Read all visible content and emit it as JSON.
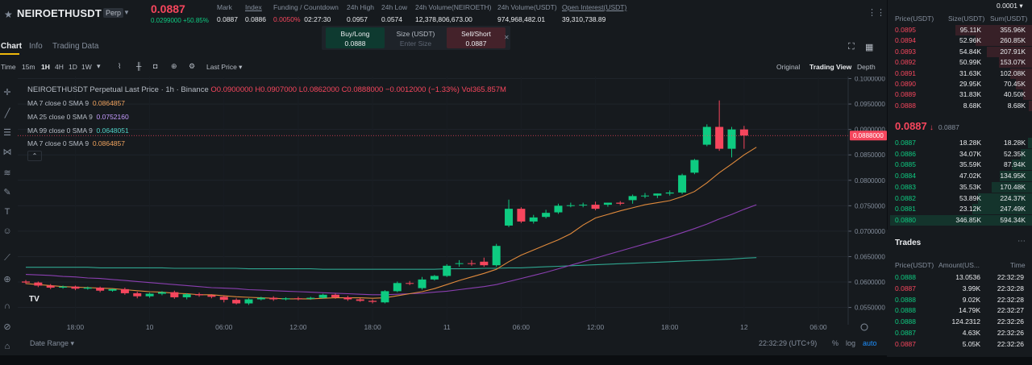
{
  "header": {
    "symbol": "NEIROETHUSDT",
    "perp_badge": "Perp",
    "last_price": "0.0887",
    "change": "0.0299000 +50.85%",
    "stats": [
      {
        "label": "Mark",
        "value": "0.0887"
      },
      {
        "label": "Index",
        "value": "0.0886"
      },
      {
        "label": "Funding / Countdown",
        "value_rate": "0.0050%",
        "value_countdown": "02:27:30"
      },
      {
        "label": "24h High",
        "value": "0.0957"
      },
      {
        "label": "24h Low",
        "value": "0.0574"
      },
      {
        "label": "24h Volume(NEIROETH)",
        "value": "12,378,806,673.00"
      },
      {
        "label": "24h Volume(USDT)",
        "value": "974,968,482.01"
      },
      {
        "label": "Open Interest(USDT)",
        "value": "39,310,738.89"
      }
    ]
  },
  "tabs": [
    "Chart",
    "Info",
    "Trading Data"
  ],
  "trade_widget": {
    "buy_label": "Buy/Long",
    "buy_price": "0.0888",
    "size_label": "Size (USDT)",
    "size_placeholder": "Enter Size",
    "sell_label": "Sell/Short",
    "sell_price": "0.0887"
  },
  "toolbar": {
    "time_label": "Time",
    "intervals": [
      "15m",
      "1H",
      "4H",
      "1D",
      "1W"
    ],
    "active_interval": "1H",
    "price_type": "Last Price",
    "views": [
      "Original",
      "Trading View",
      "Depth"
    ],
    "active_view": "Trading View"
  },
  "legend": {
    "title": "NEIROETHUSDT Perpetual Last Price · 1h · Binance",
    "ohlc": "O0.0900000 H0.0907000 L0.0862000 C0.0888000 −0.0012000 (−1.33%) Vol365.857M",
    "ma_rows": [
      {
        "label": "MA 7 close 0 SMA 9",
        "value": "0.0864857",
        "color": "#f0a35e"
      },
      {
        "label": "MA 25 close 0 SMA 9",
        "value": "0.0752160",
        "color": "#b388ff"
      },
      {
        "label": "MA 99 close 0 SMA 9",
        "value": "0.0648051",
        "color": "#4fd1c5"
      },
      {
        "label": "MA 7 close 0 SMA 9",
        "value": "0.0864857",
        "color": "#f0a35e"
      }
    ]
  },
  "chart_data": {
    "type": "candlestick",
    "title": "NEIROETHUSDT Perpetual Last Price · 1h · Binance",
    "y_ticks": [
      "0.1000000",
      "0.0950000",
      "0.0900000",
      "0.0850000",
      "0.0800000",
      "0.0750000",
      "0.0700000",
      "0.0650000",
      "0.0600000",
      "0.0550000"
    ],
    "ylim": [
      0.0524,
      0.1004
    ],
    "x_ticks": [
      "18:00",
      "10",
      "06:00",
      "12:00",
      "18:00",
      "11",
      "06:00",
      "12:00",
      "18:00",
      "12",
      "06:00"
    ],
    "x_tick_slot": [
      4,
      10,
      16,
      22,
      28,
      34,
      40,
      46,
      52,
      58,
      64
    ],
    "current_price_label": "0.0888000",
    "candles": [
      {
        "o": 0.0601,
        "h": 0.0604,
        "c": 0.0599,
        "l": 0.0596
      },
      {
        "o": 0.0599,
        "h": 0.0601,
        "c": 0.0593,
        "l": 0.059
      },
      {
        "o": 0.0593,
        "h": 0.0596,
        "c": 0.0589,
        "l": 0.0586
      },
      {
        "o": 0.0589,
        "h": 0.0593,
        "c": 0.0591,
        "l": 0.0587
      },
      {
        "o": 0.0591,
        "h": 0.0593,
        "c": 0.0587,
        "l": 0.0584
      },
      {
        "o": 0.0587,
        "h": 0.0591,
        "c": 0.0589,
        "l": 0.0585
      },
      {
        "o": 0.0589,
        "h": 0.0591,
        "c": 0.0583,
        "l": 0.058
      },
      {
        "o": 0.0583,
        "h": 0.0587,
        "c": 0.0586,
        "l": 0.0581
      },
      {
        "o": 0.0586,
        "h": 0.0589,
        "c": 0.0578,
        "l": 0.0575
      },
      {
        "o": 0.0578,
        "h": 0.0581,
        "c": 0.0572,
        "l": 0.0568
      },
      {
        "o": 0.0572,
        "h": 0.0579,
        "c": 0.0577,
        "l": 0.0569
      },
      {
        "o": 0.0577,
        "h": 0.0582,
        "c": 0.058,
        "l": 0.0574
      },
      {
        "o": 0.058,
        "h": 0.0583,
        "c": 0.057,
        "l": 0.0567
      },
      {
        "o": 0.057,
        "h": 0.0578,
        "c": 0.0576,
        "l": 0.0566
      },
      {
        "o": 0.0576,
        "h": 0.0579,
        "c": 0.0574,
        "l": 0.0571
      },
      {
        "o": 0.0574,
        "h": 0.0576,
        "c": 0.0571,
        "l": 0.0568
      },
      {
        "o": 0.0571,
        "h": 0.0574,
        "c": 0.0565,
        "l": 0.056
      },
      {
        "o": 0.0565,
        "h": 0.0568,
        "c": 0.0558,
        "l": 0.0556
      },
      {
        "o": 0.0558,
        "h": 0.0568,
        "c": 0.0566,
        "l": 0.0555
      },
      {
        "o": 0.0566,
        "h": 0.0571,
        "c": 0.0569,
        "l": 0.0564
      },
      {
        "o": 0.0569,
        "h": 0.0572,
        "c": 0.0566,
        "l": 0.0563
      },
      {
        "o": 0.0566,
        "h": 0.057,
        "c": 0.0568,
        "l": 0.0564
      },
      {
        "o": 0.0568,
        "h": 0.0571,
        "c": 0.0567,
        "l": 0.0564
      },
      {
        "o": 0.0567,
        "h": 0.0571,
        "c": 0.0569,
        "l": 0.0565
      },
      {
        "o": 0.0569,
        "h": 0.0577,
        "c": 0.0575,
        "l": 0.0567
      },
      {
        "o": 0.0575,
        "h": 0.0577,
        "c": 0.057,
        "l": 0.0567
      },
      {
        "o": 0.057,
        "h": 0.0573,
        "c": 0.0566,
        "l": 0.0563
      },
      {
        "o": 0.0566,
        "h": 0.0569,
        "c": 0.0563,
        "l": 0.0561
      },
      {
        "o": 0.0563,
        "h": 0.0566,
        "c": 0.0561,
        "l": 0.0558
      },
      {
        "o": 0.056,
        "h": 0.0584,
        "c": 0.0582,
        "l": 0.0558
      },
      {
        "o": 0.0582,
        "h": 0.0601,
        "c": 0.0598,
        "l": 0.058
      },
      {
        "o": 0.0598,
        "h": 0.0602,
        "c": 0.0597,
        "l": 0.0594
      },
      {
        "o": 0.0588,
        "h": 0.061,
        "c": 0.0605,
        "l": 0.0585
      },
      {
        "o": 0.0605,
        "h": 0.0614,
        "c": 0.0612,
        "l": 0.0603
      },
      {
        "o": 0.0612,
        "h": 0.0635,
        "c": 0.0632,
        "l": 0.061
      },
      {
        "o": 0.0636,
        "h": 0.0643,
        "c": 0.0637,
        "l": 0.063
      },
      {
        "o": 0.0637,
        "h": 0.0643,
        "c": 0.0636,
        "l": 0.0632
      },
      {
        "o": 0.064,
        "h": 0.0648,
        "c": 0.0633,
        "l": 0.063
      },
      {
        "o": 0.0633,
        "h": 0.0675,
        "c": 0.0671,
        "l": 0.063
      },
      {
        "o": 0.0711,
        "h": 0.0762,
        "c": 0.0744,
        "l": 0.0708
      },
      {
        "o": 0.0744,
        "h": 0.0747,
        "c": 0.0719,
        "l": 0.0716
      },
      {
        "o": 0.0719,
        "h": 0.0732,
        "c": 0.0727,
        "l": 0.0715
      },
      {
        "o": 0.0728,
        "h": 0.0742,
        "c": 0.0736,
        "l": 0.0725
      },
      {
        "o": 0.0737,
        "h": 0.0754,
        "c": 0.075,
        "l": 0.0734
      },
      {
        "o": 0.075,
        "h": 0.0756,
        "c": 0.0751,
        "l": 0.0747
      },
      {
        "o": 0.0751,
        "h": 0.0756,
        "c": 0.0752,
        "l": 0.0747
      },
      {
        "o": 0.0752,
        "h": 0.0758,
        "c": 0.0744,
        "l": 0.0741
      },
      {
        "o": 0.0752,
        "h": 0.0756,
        "c": 0.0756,
        "l": 0.0748
      },
      {
        "o": 0.0756,
        "h": 0.0759,
        "c": 0.0754,
        "l": 0.0751
      },
      {
        "o": 0.0761,
        "h": 0.0772,
        "c": 0.0769,
        "l": 0.0754
      },
      {
        "o": 0.0769,
        "h": 0.0775,
        "c": 0.077,
        "l": 0.0765
      },
      {
        "o": 0.077,
        "h": 0.0774,
        "c": 0.0774,
        "l": 0.0765
      },
      {
        "o": 0.0774,
        "h": 0.078,
        "c": 0.0776,
        "l": 0.077
      },
      {
        "o": 0.0776,
        "h": 0.0813,
        "c": 0.081,
        "l": 0.0773
      },
      {
        "o": 0.0815,
        "h": 0.0842,
        "c": 0.084,
        "l": 0.0812
      },
      {
        "o": 0.087,
        "h": 0.091,
        "c": 0.0905,
        "l": 0.0867
      },
      {
        "o": 0.0905,
        "h": 0.0957,
        "c": 0.0862,
        "l": 0.0858
      },
      {
        "o": 0.0862,
        "h": 0.0905,
        "c": 0.09,
        "l": 0.0845
      },
      {
        "o": 0.09,
        "h": 0.0907,
        "c": 0.0888,
        "l": 0.0862
      }
    ],
    "ma7": [
      0.0597,
      0.0595,
      0.0593,
      0.0591,
      0.059,
      0.0589,
      0.0588,
      0.0587,
      0.0585,
      0.0583,
      0.0581,
      0.058,
      0.0578,
      0.0577,
      0.0575,
      0.0575,
      0.0573,
      0.0571,
      0.057,
      0.0569,
      0.0568,
      0.0567,
      0.0567,
      0.0567,
      0.0568,
      0.0569,
      0.0569,
      0.0569,
      0.0568,
      0.0569,
      0.0573,
      0.0577,
      0.0581,
      0.0587,
      0.0595,
      0.0603,
      0.061,
      0.0617,
      0.0625,
      0.064,
      0.0653,
      0.0663,
      0.0673,
      0.0683,
      0.0695,
      0.0712,
      0.0726,
      0.0733,
      0.074,
      0.0746,
      0.0752,
      0.0756,
      0.076,
      0.0768,
      0.0778,
      0.0795,
      0.0815,
      0.0832,
      0.085,
      0.0865
    ],
    "ma25": [
      0.0615,
      0.0614,
      0.0613,
      0.0611,
      0.061,
      0.0608,
      0.0607,
      0.0605,
      0.0603,
      0.0601,
      0.0599,
      0.0597,
      0.0595,
      0.0593,
      0.0591,
      0.0589,
      0.0588,
      0.0587,
      0.0585,
      0.0584,
      0.0583,
      0.0582,
      0.0581,
      0.058,
      0.0579,
      0.0578,
      0.0577,
      0.0576,
      0.0575,
      0.0575,
      0.0576,
      0.0577,
      0.0578,
      0.058,
      0.0582,
      0.0585,
      0.0588,
      0.0591,
      0.0595,
      0.0601,
      0.0607,
      0.0613,
      0.0619,
      0.0626,
      0.0633,
      0.064,
      0.0647,
      0.0654,
      0.0661,
      0.0668,
      0.0675,
      0.0682,
      0.0689,
      0.0697,
      0.0705,
      0.0714,
      0.0724,
      0.0733,
      0.0743,
      0.0752
    ],
    "ma99": [
      0.0629,
      0.0629,
      0.0629,
      0.0629,
      0.0629,
      0.0629,
      0.0628,
      0.0628,
      0.0628,
      0.0628,
      0.0628,
      0.0628,
      0.0627,
      0.0627,
      0.0627,
      0.0627,
      0.0627,
      0.0627,
      0.0626,
      0.0626,
      0.0626,
      0.0626,
      0.0626,
      0.0626,
      0.0625,
      0.0625,
      0.0625,
      0.0625,
      0.0625,
      0.0625,
      0.0625,
      0.0625,
      0.0625,
      0.0625,
      0.0626,
      0.0626,
      0.0626,
      0.0627,
      0.0627,
      0.0628,
      0.0628,
      0.0629,
      0.063,
      0.0631,
      0.0632,
      0.0633,
      0.0634,
      0.0635,
      0.0636,
      0.0637,
      0.0638,
      0.0639,
      0.064,
      0.0641,
      0.0642,
      0.0643,
      0.0644,
      0.0645,
      0.0647,
      0.0648
    ]
  },
  "bottom": {
    "date_range": "Date Range",
    "clock": "22:32:29 (UTC+9)",
    "pct": "%",
    "log": "log",
    "auto": "auto"
  },
  "orderbook": {
    "precision": "0.0001",
    "headers": [
      "Price(USDT)",
      "Size(USDT)",
      "Sum(USDT)"
    ],
    "asks": [
      {
        "price": "0.0895",
        "size": "95.11K",
        "sum": "355.96K",
        "depth": 0.53
      },
      {
        "price": "0.0894",
        "size": "52.96K",
        "sum": "260.85K",
        "depth": 0.39
      },
      {
        "price": "0.0893",
        "size": "54.84K",
        "sum": "207.91K",
        "depth": 0.31
      },
      {
        "price": "0.0892",
        "size": "50.99K",
        "sum": "153.07K",
        "depth": 0.23
      },
      {
        "price": "0.0891",
        "size": "31.63K",
        "sum": "102.08K",
        "depth": 0.15
      },
      {
        "price": "0.0890",
        "size": "29.95K",
        "sum": "70.45K",
        "depth": 0.11
      },
      {
        "price": "0.0889",
        "size": "31.83K",
        "sum": "40.50K",
        "depth": 0.06
      },
      {
        "price": "0.0888",
        "size": "8.68K",
        "sum": "8.68K",
        "depth": 0.02
      }
    ],
    "mid_price": "0.0887",
    "mid_arrow": "↓",
    "mid_mark": "0.0887",
    "bids": [
      {
        "price": "0.0887",
        "size": "18.28K",
        "sum": "18.28K",
        "depth": 0.03
      },
      {
        "price": "0.0886",
        "size": "34.07K",
        "sum": "52.35K",
        "depth": 0.08
      },
      {
        "price": "0.0885",
        "size": "35.59K",
        "sum": "87.94K",
        "depth": 0.14
      },
      {
        "price": "0.0884",
        "size": "47.02K",
        "sum": "134.95K",
        "depth": 0.22
      },
      {
        "price": "0.0883",
        "size": "35.53K",
        "sum": "170.48K",
        "depth": 0.28
      },
      {
        "price": "0.0882",
        "size": "53.89K",
        "sum": "224.37K",
        "depth": 0.37
      },
      {
        "price": "0.0881",
        "size": "23.12K",
        "sum": "247.49K",
        "depth": 0.41
      },
      {
        "price": "0.0880",
        "size": "346.85K",
        "sum": "594.34K",
        "depth": 0.98
      }
    ]
  },
  "trades": {
    "title": "Trades",
    "headers": [
      "Price(USDT)",
      "Amount(US...",
      "Time"
    ],
    "rows": [
      {
        "price": "0.0888",
        "amount": "13.0536",
        "time": "22:32:29",
        "side": "buy"
      },
      {
        "price": "0.0887",
        "amount": "3.99K",
        "time": "22:32:28",
        "side": "sell"
      },
      {
        "price": "0.0888",
        "amount": "9.02K",
        "time": "22:32:28",
        "side": "buy"
      },
      {
        "price": "0.0888",
        "amount": "14.79K",
        "time": "22:32:27",
        "side": "buy"
      },
      {
        "price": "0.0888",
        "amount": "124.2312",
        "time": "22:32:26",
        "side": "buy"
      },
      {
        "price": "0.0887",
        "amount": "4.63K",
        "time": "22:32:26",
        "side": "buy"
      },
      {
        "price": "0.0887",
        "amount": "5.05K",
        "time": "22:32:26",
        "side": "sell"
      }
    ]
  },
  "colors": {
    "up": "#0ecb81",
    "down": "#f6465d",
    "accent": "#f0b90b",
    "bg": "#161a1e"
  }
}
